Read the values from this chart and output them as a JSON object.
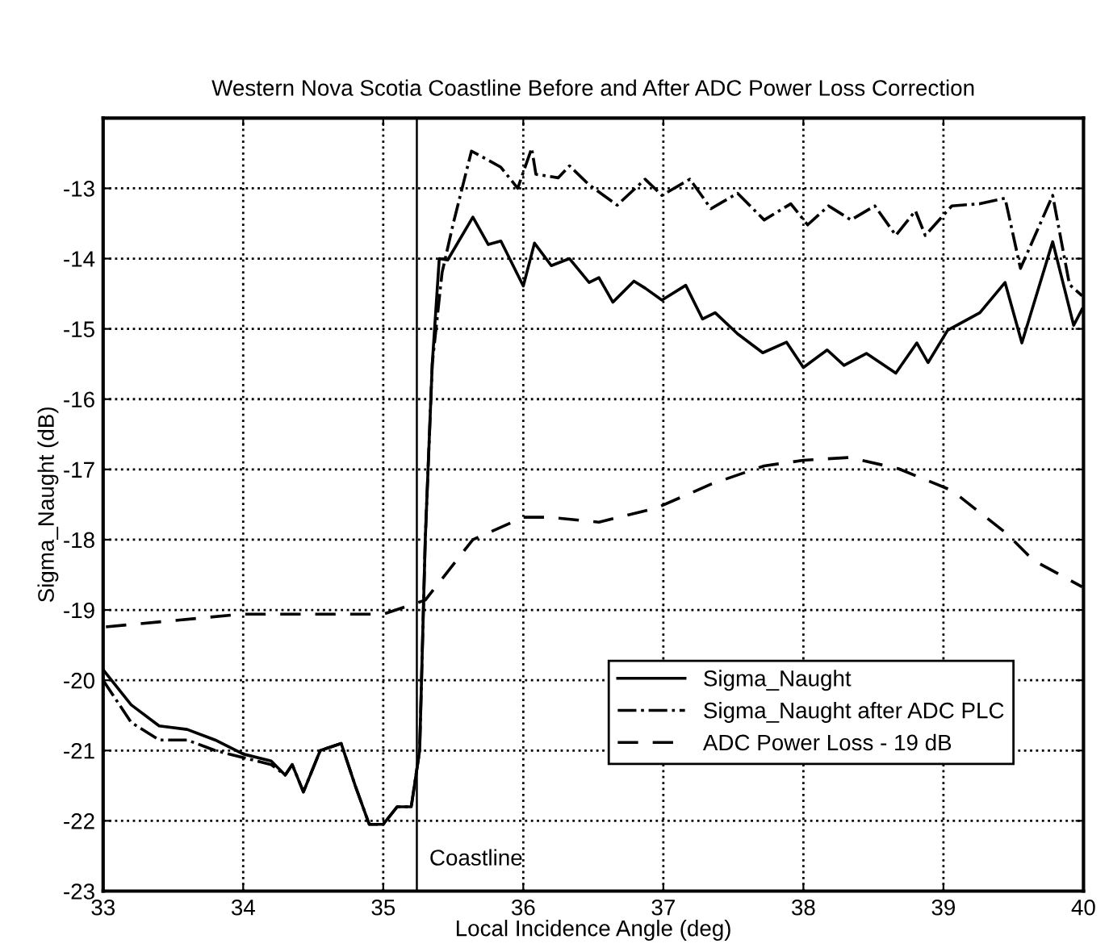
{
  "chart_data": {
    "type": "line",
    "title": "Western Nova Scotia Coastline Before and After ADC Power Loss Correction",
    "xlabel": "Local Incidence Angle (deg)",
    "ylabel": "Sigma_Naught (dB)",
    "xlim": [
      33,
      40
    ],
    "ylim": [
      -23,
      -12
    ],
    "xticks": [
      33,
      34,
      35,
      36,
      37,
      38,
      39,
      40
    ],
    "yticks": [
      -23,
      -22,
      -21,
      -20,
      -19,
      -18,
      -17,
      -16,
      -15,
      -14,
      -13
    ],
    "grid": true,
    "legend": "lower right",
    "ref_lines": [
      {
        "axis": "x",
        "value": 35.24,
        "label": "Coastline",
        "color": "#000000",
        "line_style": "solid"
      }
    ],
    "series": [
      {
        "name": "Sigma_Naught",
        "color": "#000000",
        "line_style": "solid",
        "x": [
          33.0,
          33.2,
          33.4,
          33.6,
          33.8,
          34.0,
          34.2,
          34.3,
          34.35,
          34.43,
          34.55,
          34.7,
          34.8,
          34.9,
          35.0,
          35.1,
          35.2,
          35.26,
          35.3,
          35.35,
          35.4,
          35.46,
          35.64,
          35.75,
          35.84,
          36.0,
          36.08,
          36.2,
          36.33,
          36.47,
          36.54,
          36.64,
          36.79,
          36.87,
          36.99,
          37.16,
          37.28,
          37.37,
          37.53,
          37.71,
          37.88,
          38.0,
          38.17,
          38.29,
          38.45,
          38.66,
          38.81,
          38.89,
          39.03,
          39.26,
          39.44,
          39.56,
          39.78,
          39.93,
          39.99
        ],
        "values": [
          -19.85,
          -20.35,
          -20.65,
          -20.7,
          -20.85,
          -21.05,
          -21.15,
          -21.35,
          -21.2,
          -21.59,
          -21.0,
          -20.9,
          -21.5,
          -22.05,
          -22.05,
          -21.8,
          -21.8,
          -21.0,
          -18.0,
          -15.5,
          -14.0,
          -14.02,
          -13.41,
          -13.8,
          -13.75,
          -14.39,
          -13.78,
          -14.1,
          -14.0,
          -14.34,
          -14.27,
          -14.62,
          -14.32,
          -14.42,
          -14.59,
          -14.38,
          -14.86,
          -14.77,
          -15.07,
          -15.34,
          -15.19,
          -15.55,
          -15.3,
          -15.52,
          -15.35,
          -15.63,
          -15.2,
          -15.48,
          -15.02,
          -14.77,
          -14.34,
          -15.2,
          -13.76,
          -14.95,
          -14.72
        ]
      },
      {
        "name": "Sigma_Naught after ADC PLC",
        "color": "#000000",
        "line_style": "dashdot",
        "x": [
          33.0,
          33.2,
          33.4,
          33.6,
          33.8,
          34.0,
          34.2,
          34.3,
          34.35,
          34.43,
          34.55,
          34.7,
          34.8,
          34.9,
          35.0,
          35.1,
          35.2,
          35.26,
          35.3,
          35.35,
          35.42,
          35.5,
          35.63,
          35.75,
          35.84,
          35.96,
          36.06,
          36.09,
          36.25,
          36.33,
          36.47,
          36.67,
          36.87,
          36.99,
          37.19,
          37.34,
          37.53,
          37.72,
          37.91,
          38.03,
          38.18,
          38.34,
          38.51,
          38.66,
          38.8,
          38.87,
          39.06,
          39.26,
          39.44,
          39.55,
          39.78,
          39.9,
          39.99
        ],
        "values": [
          -20.0,
          -20.6,
          -20.85,
          -20.85,
          -21.0,
          -21.1,
          -21.2,
          -21.35,
          -21.2,
          -21.59,
          -21.0,
          -20.9,
          -21.5,
          -22.05,
          -22.05,
          -21.8,
          -21.8,
          -21.0,
          -18.0,
          -15.5,
          -14.2,
          -13.5,
          -12.47,
          -12.6,
          -12.7,
          -13.0,
          -12.43,
          -12.8,
          -12.85,
          -12.68,
          -12.95,
          -13.24,
          -12.87,
          -13.1,
          -12.87,
          -13.29,
          -13.07,
          -13.45,
          -13.22,
          -13.52,
          -13.25,
          -13.45,
          -13.25,
          -13.67,
          -13.32,
          -13.67,
          -13.25,
          -13.22,
          -13.14,
          -14.14,
          -13.1,
          -14.37,
          -14.53
        ]
      },
      {
        "name": "ADC Power Loss - 19 dB",
        "color": "#000000",
        "line_style": "dashed",
        "x": [
          33.02,
          33.99,
          35.0,
          35.3,
          35.64,
          36.0,
          36.18,
          36.54,
          36.95,
          37.34,
          37.72,
          38.0,
          38.33,
          38.68,
          39.06,
          39.45,
          39.64,
          39.99
        ],
        "values": [
          -19.24,
          -19.06,
          -19.06,
          -18.86,
          -18.0,
          -17.68,
          -17.68,
          -17.75,
          -17.55,
          -17.21,
          -16.95,
          -16.87,
          -16.83,
          -16.99,
          -17.3,
          -17.91,
          -18.29,
          -18.67
        ]
      }
    ]
  }
}
